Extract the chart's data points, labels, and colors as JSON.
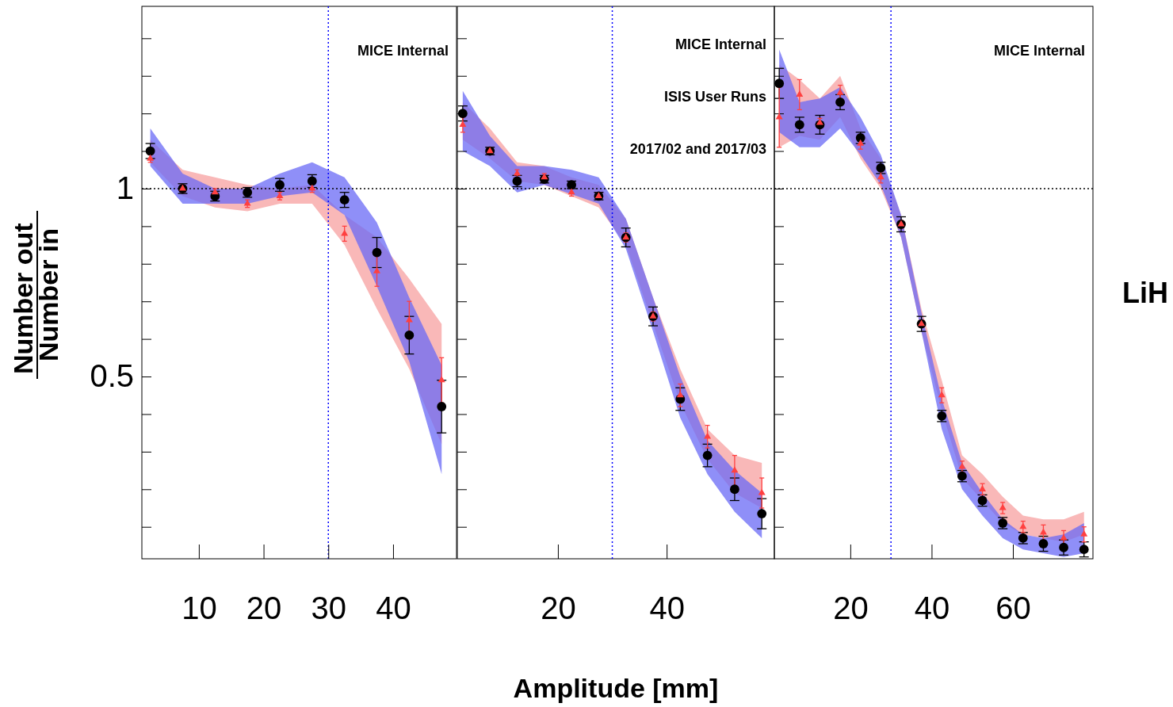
{
  "chart_data": [
    {
      "type": "scatter",
      "ylabel": "Number out Number in",
      "xlim": [
        1.2,
        49.8
      ],
      "ylim": [
        0.015,
        1.485
      ],
      "xticks": [
        10,
        20,
        30,
        40
      ],
      "yticks": [
        {
          "value": 0.1,
          "label": null
        },
        {
          "value": 0.2,
          "label": null
        },
        {
          "value": 0.3,
          "label": null
        },
        {
          "value": 0.4,
          "label": null
        },
        0.5,
        {
          "value": 0.6,
          "label": null
        },
        {
          "value": 0.7,
          "label": null
        },
        {
          "value": 0.8,
          "label": null
        },
        {
          "value": 0.9,
          "label": null
        },
        1,
        {
          "value": 1.1,
          "label": null
        },
        {
          "value": 1.2,
          "label": null
        },
        {
          "value": 1.3,
          "label": null
        },
        {
          "value": 1.4,
          "label": null
        }
      ],
      "legend": false,
      "x": [
        2.5,
        7.5,
        12.5,
        17.5,
        22.5,
        27.5,
        32.5,
        37.5,
        42.5,
        47.5
      ],
      "ref_lines": [
        {
          "axis": "y",
          "value": 1,
          "color": "#000000",
          "line_style": "dotted"
        },
        {
          "axis": "x",
          "value": 30,
          "color": "#0000ff",
          "line_style": "dotted"
        }
      ],
      "annotations": [
        "MICE Internal"
      ],
      "series": [
        {
          "color": "#ff4040",
          "marker": "triangle",
          "values": [
            1.08,
            1.0,
            0.99,
            0.96,
            0.98,
            1.0,
            0.88,
            0.78,
            0.65,
            0.49
          ],
          "errors": [
            0.01,
            0.01,
            0.01,
            0.01,
            0.01,
            0.01,
            0.02,
            0.04,
            0.05,
            0.06
          ],
          "upper": [
            1.13,
            1.05,
            1.03,
            1.01,
            1.0,
            1.01,
            0.93,
            0.87,
            0.76,
            0.64
          ],
          "lower": [
            1.07,
            0.98,
            0.95,
            0.94,
            0.96,
            0.96,
            0.85,
            0.68,
            0.52,
            0.32
          ]
        },
        {
          "color": "#000000",
          "marker": "circle",
          "values": [
            1.1,
            1.0,
            0.98,
            0.99,
            1.01,
            1.02,
            0.97,
            0.83,
            0.61,
            0.42
          ],
          "errors": [
            0.02,
            0.013,
            0.013,
            0.013,
            0.017,
            0.017,
            0.02,
            0.04,
            0.05,
            0.07
          ],
          "upper": [
            1.16,
            1.04,
            1.0,
            1.0,
            1.04,
            1.07,
            1.03,
            0.91,
            0.71,
            0.53
          ],
          "lower": [
            1.06,
            0.96,
            0.96,
            0.96,
            0.98,
            0.99,
            0.93,
            0.74,
            0.54,
            0.24
          ]
        }
      ]
    },
    {
      "type": "scatter",
      "xlabel": "Amplitude [mm]",
      "xlim": [
        1.5,
        59.8
      ],
      "ylim": [
        0.015,
        1.485
      ],
      "xticks": [
        20,
        40
      ],
      "yticks": [
        {
          "value": 0.1,
          "label": null
        },
        {
          "value": 0.2,
          "label": null
        },
        {
          "value": 0.3,
          "label": null
        },
        {
          "value": 0.4,
          "label": null
        },
        {
          "value": 0.5,
          "label": null
        },
        {
          "value": 0.6,
          "label": null
        },
        {
          "value": 0.7,
          "label": null
        },
        {
          "value": 0.8,
          "label": null
        },
        {
          "value": 0.9,
          "label": null
        },
        {
          "value": 1,
          "label": null
        },
        {
          "value": 1.1,
          "label": null
        },
        {
          "value": 1.2,
          "label": null
        },
        {
          "value": 1.3,
          "label": null
        },
        {
          "value": 1.4,
          "label": null
        }
      ],
      "tick_labels": "x",
      "legend": false,
      "x": [
        2.5,
        7.5,
        12.5,
        17.5,
        22.5,
        27.5,
        32.5,
        37.5,
        42.5,
        47.5,
        52.5,
        57.5
      ],
      "ref_lines": [
        {
          "axis": "y",
          "value": 1,
          "color": "#000000",
          "line_style": "dotted"
        },
        {
          "axis": "x",
          "value": 30,
          "color": "#0000ff",
          "line_style": "dotted"
        }
      ],
      "annotations": [
        "MICE Internal",
        "ISIS User Runs",
        "2017/02 and 2017/03"
      ],
      "series": [
        {
          "color": "#ff4040",
          "marker": "triangle",
          "values": [
            1.17,
            1.1,
            1.04,
            1.03,
            0.99,
            0.98,
            0.87,
            0.66,
            0.45,
            0.34,
            0.25,
            0.19
          ],
          "errors": [
            0.02,
            0.01,
            0.01,
            0.01,
            0.01,
            0.01,
            0.012,
            0.012,
            0.03,
            0.03,
            0.04,
            0.04
          ],
          "upper": [
            1.23,
            1.16,
            1.07,
            1.06,
            1.03,
            1.01,
            0.92,
            0.71,
            0.52,
            0.36,
            0.29,
            0.27
          ],
          "lower": [
            1.13,
            1.08,
            1.02,
            1.01,
            0.98,
            0.95,
            0.85,
            0.64,
            0.43,
            0.28,
            0.19,
            0.15
          ]
        },
        {
          "color": "#000000",
          "marker": "circle",
          "values": [
            1.2,
            1.1,
            1.02,
            1.025,
            1.01,
            0.98,
            0.87,
            0.66,
            0.44,
            0.29,
            0.2,
            0.135
          ],
          "errors": [
            0.02,
            0.01,
            0.015,
            0.01,
            0.01,
            0.01,
            0.025,
            0.025,
            0.03,
            0.03,
            0.03,
            0.04
          ],
          "upper": [
            1.26,
            1.14,
            1.06,
            1.06,
            1.05,
            1.03,
            0.92,
            0.71,
            0.5,
            0.33,
            0.25,
            0.19
          ],
          "lower": [
            1.1,
            1.06,
            0.99,
            1.01,
            0.985,
            0.96,
            0.84,
            0.62,
            0.39,
            0.24,
            0.14,
            0.07
          ]
        }
      ]
    },
    {
      "type": "scatter",
      "y2label": "LiH",
      "xlim": [
        1.3,
        79.7
      ],
      "ylim": [
        0.015,
        1.485
      ],
      "xticks": [
        20,
        40,
        60
      ],
      "yticks": [
        {
          "value": 0.1,
          "label": null
        },
        {
          "value": 0.2,
          "label": null
        },
        {
          "value": 0.3,
          "label": null
        },
        {
          "value": 0.4,
          "label": null
        },
        {
          "value": 0.5,
          "label": null
        },
        {
          "value": 0.6,
          "label": null
        },
        {
          "value": 0.7,
          "label": null
        },
        {
          "value": 0.8,
          "label": null
        },
        {
          "value": 0.9,
          "label": null
        },
        {
          "value": 1,
          "label": null
        },
        {
          "value": 1.1,
          "label": null
        },
        {
          "value": 1.2,
          "label": null
        },
        {
          "value": 1.3,
          "label": null
        },
        {
          "value": 1.4,
          "label": null
        }
      ],
      "tick_labels": "x",
      "legend": false,
      "x": [
        2.5,
        7.5,
        12.5,
        17.5,
        22.5,
        27.5,
        32.5,
        37.5,
        42.5,
        47.5,
        52.5,
        57.5,
        62.5,
        67.5,
        72.5,
        77.5
      ],
      "ref_lines": [
        {
          "axis": "y",
          "value": 1,
          "color": "#000000",
          "line_style": "dotted"
        },
        {
          "axis": "x",
          "value": 30,
          "color": "#0000ff",
          "line_style": "dotted"
        }
      ],
      "annotations": [
        "MICE Internal"
      ],
      "series": [
        {
          "color": "#ff4040",
          "marker": "triangle",
          "values": [
            1.19,
            1.25,
            1.175,
            1.255,
            1.12,
            1.03,
            0.905,
            0.64,
            0.45,
            0.26,
            0.2,
            0.15,
            0.1,
            0.085,
            0.07,
            0.08
          ],
          "errors": [
            0.08,
            0.04,
            0.012,
            0.02,
            0.015,
            0.015,
            0.01,
            0.01,
            0.02,
            0.015,
            0.015,
            0.015,
            0.015,
            0.02,
            0.02,
            0.02
          ],
          "upper": [
            1.33,
            1.29,
            1.24,
            1.3,
            1.16,
            1.08,
            0.93,
            0.68,
            0.49,
            0.29,
            0.24,
            0.18,
            0.13,
            0.12,
            0.12,
            0.14
          ],
          "lower": [
            1.11,
            1.14,
            1.13,
            1.19,
            1.08,
            1.0,
            0.87,
            0.62,
            0.41,
            0.23,
            0.17,
            0.11,
            0.08,
            0.07,
            0.06,
            0.08
          ]
        },
        {
          "color": "#000000",
          "marker": "circle",
          "values": [
            1.28,
            1.17,
            1.17,
            1.23,
            1.135,
            1.055,
            0.905,
            0.64,
            0.395,
            0.235,
            0.17,
            0.11,
            0.07,
            0.055,
            0.045,
            0.04
          ],
          "errors": [
            0.04,
            0.02,
            0.025,
            0.02,
            0.015,
            0.015,
            0.02,
            0.02,
            0.015,
            0.015,
            0.015,
            0.015,
            0.015,
            0.02,
            0.02,
            0.02
          ],
          "upper": [
            1.37,
            1.23,
            1.24,
            1.27,
            1.19,
            1.09,
            0.93,
            0.67,
            0.44,
            0.27,
            0.19,
            0.12,
            0.08,
            0.07,
            0.08,
            0.11
          ],
          "lower": [
            1.15,
            1.11,
            1.11,
            1.16,
            1.09,
            1.01,
            0.87,
            0.62,
            0.36,
            0.2,
            0.13,
            0.07,
            0.04,
            0.03,
            0.02,
            0.03
          ]
        }
      ]
    }
  ]
}
